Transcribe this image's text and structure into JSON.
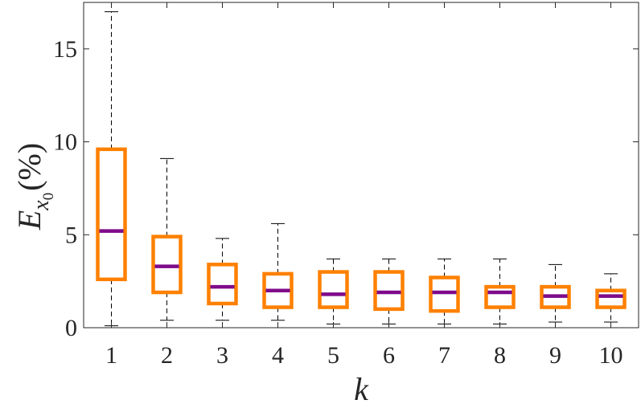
{
  "chart_data": {
    "type": "box",
    "xlabel": "k",
    "ylabel": {
      "main": "E",
      "sub": "x",
      "subsub": "0",
      "unit": "(%)"
    },
    "ylim": [
      0,
      17.5
    ],
    "yticks": [
      0,
      5,
      10,
      15
    ],
    "grid": false,
    "box_color": "#ff8000",
    "median_color": "#7e0a8a",
    "whisker_color": "#000000",
    "boxes": [
      {
        "category": "1",
        "min": 0.1,
        "q1": 2.6,
        "median": 5.2,
        "q3": 9.6,
        "max": 17.0
      },
      {
        "category": "2",
        "min": 0.4,
        "q1": 1.9,
        "median": 3.3,
        "q3": 4.9,
        "max": 9.1
      },
      {
        "category": "3",
        "min": 0.4,
        "q1": 1.3,
        "median": 2.2,
        "q3": 3.4,
        "max": 4.8
      },
      {
        "category": "4",
        "min": 0.4,
        "q1": 1.1,
        "median": 2.0,
        "q3": 2.9,
        "max": 5.6
      },
      {
        "category": "5",
        "min": 0.2,
        "q1": 1.1,
        "median": 1.8,
        "q3": 3.0,
        "max": 3.7
      },
      {
        "category": "6",
        "min": 0.2,
        "q1": 1.0,
        "median": 1.9,
        "q3": 3.0,
        "max": 3.7
      },
      {
        "category": "7",
        "min": 0.2,
        "q1": 0.9,
        "median": 1.9,
        "q3": 2.7,
        "max": 3.7
      },
      {
        "category": "8",
        "min": 0.2,
        "q1": 1.1,
        "median": 1.9,
        "q3": 2.2,
        "max": 3.7
      },
      {
        "category": "9",
        "min": 0.3,
        "q1": 1.1,
        "median": 1.7,
        "q3": 2.2,
        "max": 3.4
      },
      {
        "category": "10",
        "min": 0.3,
        "q1": 1.1,
        "median": 1.7,
        "q3": 2.0,
        "max": 2.9
      }
    ]
  }
}
